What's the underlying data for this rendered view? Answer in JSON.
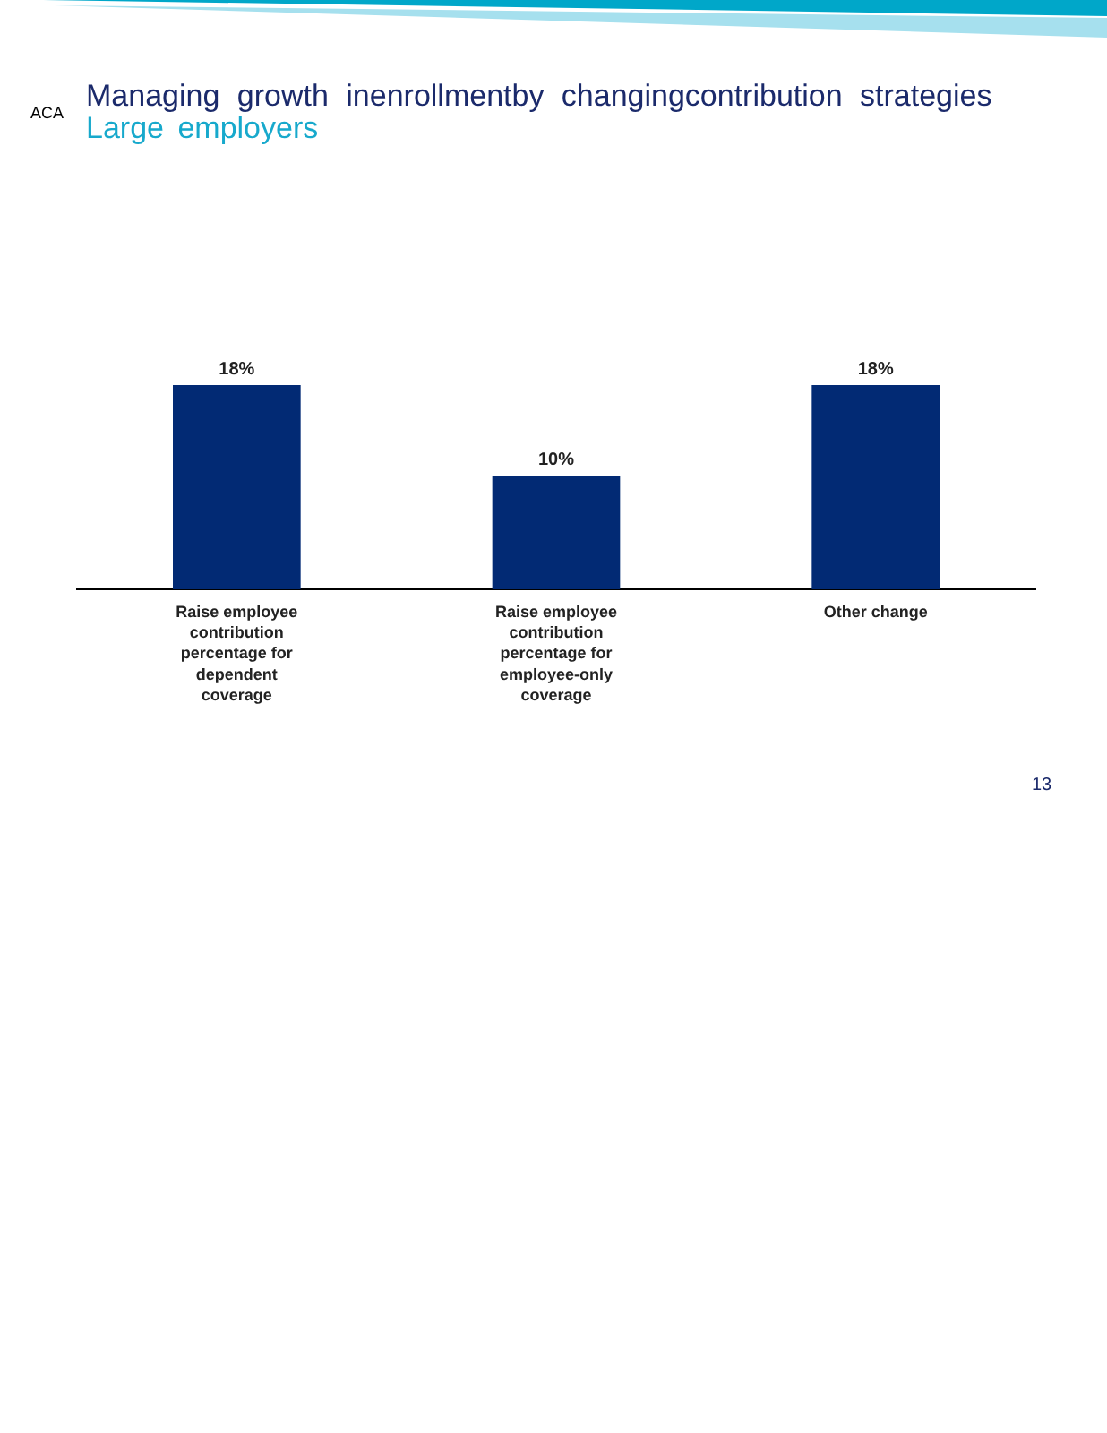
{
  "chart_data": {
    "type": "bar",
    "title": "Managing growth inenrollmentby changingcontribution strategies",
    "subtitle": "Large employers",
    "categories": [
      "Raise employee contribution percentage for dependent coverage",
      "Raise employee contribution percentage for employee-only coverage",
      "Other change"
    ],
    "values": [
      18,
      10,
      18
    ],
    "color": "#022a74",
    "value_labels": [
      "18%",
      "10%",
      "18%"
    ],
    "tick_labels": "x",
    "annotations": [
      "ACA",
      "13"
    ]
  }
}
